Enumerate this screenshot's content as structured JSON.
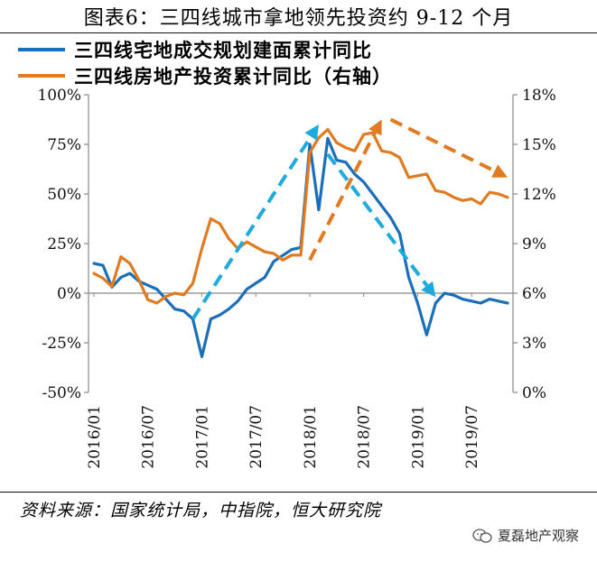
{
  "title": "图表6：三四线城市拿地领先投资约 9-12 个月",
  "legend": [
    {
      "label": "三四线宅地成交规划建面累计同比",
      "color": "#1a6fb8"
    },
    {
      "label": "三四线房地产投资累计同比（右轴）",
      "color": "#e07b22"
    }
  ],
  "source": "资料来源：国家统计局，中指院，恒大研究院",
  "watermark": "夏磊地产观察",
  "chart_data": {
    "type": "line",
    "left_axis": {
      "min": -50,
      "max": 100,
      "ticks": [
        "100%",
        "75%",
        "50%",
        "25%",
        "0%",
        "-25%",
        "-50%"
      ],
      "values": [
        100,
        75,
        50,
        25,
        0,
        -25,
        -50
      ]
    },
    "right_axis": {
      "min": 0,
      "max": 18,
      "ticks": [
        "18%",
        "15%",
        "12%",
        "9%",
        "6%",
        "3%",
        "0%"
      ],
      "values": [
        18,
        15,
        12,
        9,
        6,
        3,
        0
      ]
    },
    "x_ticks": [
      "2016/01",
      "2016/07",
      "2017/01",
      "2017/07",
      "2018/01",
      "2018/07",
      "2019/01",
      "2019/07"
    ],
    "series": [
      {
        "name": "三四线宅地成交规划建面累计同比",
        "axis": "left",
        "color": "#1a6fb8",
        "points": [
          [
            0,
            15
          ],
          [
            1,
            14
          ],
          [
            2,
            3
          ],
          [
            3,
            8
          ],
          [
            4,
            10
          ],
          [
            5,
            6
          ],
          [
            6,
            4
          ],
          [
            7,
            2
          ],
          [
            8,
            -3
          ],
          [
            9,
            -8
          ],
          [
            10,
            -9
          ],
          [
            11,
            -13
          ],
          [
            12,
            -32
          ],
          [
            13,
            -13
          ],
          [
            14,
            -11
          ],
          [
            15,
            -8
          ],
          [
            16,
            -4
          ],
          [
            17,
            2
          ],
          [
            18,
            5
          ],
          [
            19,
            8
          ],
          [
            20,
            16
          ],
          [
            21,
            19
          ],
          [
            22,
            22
          ],
          [
            23,
            23
          ],
          [
            24,
            75
          ],
          [
            25,
            42
          ],
          [
            26,
            78
          ],
          [
            27,
            67
          ],
          [
            28,
            66
          ],
          [
            29,
            60
          ],
          [
            30,
            56
          ],
          [
            31,
            50
          ],
          [
            32,
            44
          ],
          [
            33,
            38
          ],
          [
            34,
            30
          ],
          [
            35,
            8
          ],
          [
            36,
            -5
          ],
          [
            37,
            -21
          ],
          [
            38,
            -5
          ],
          [
            39,
            0
          ],
          [
            40,
            -1
          ],
          [
            41,
            -3
          ],
          [
            42,
            -4
          ],
          [
            43,
            -5
          ],
          [
            44,
            -3
          ],
          [
            45,
            -4
          ],
          [
            46,
            -5
          ]
        ]
      },
      {
        "name": "三四线房地产投资累计同比（右轴）",
        "axis": "right",
        "color": "#e07b22",
        "points": [
          [
            0,
            7.2
          ],
          [
            1,
            6.9
          ],
          [
            2,
            6.4
          ],
          [
            3,
            8.2
          ],
          [
            4,
            7.8
          ],
          [
            5,
            6.8
          ],
          [
            6,
            5.6
          ],
          [
            7,
            5.4
          ],
          [
            8,
            5.8
          ],
          [
            9,
            6.0
          ],
          [
            10,
            5.9
          ],
          [
            11,
            6.6
          ],
          [
            12,
            8.7
          ],
          [
            13,
            10.5
          ],
          [
            14,
            10.2
          ],
          [
            15,
            9.3
          ],
          [
            16,
            8.7
          ],
          [
            17,
            9.1
          ],
          [
            18,
            8.8
          ],
          [
            19,
            8.5
          ],
          [
            20,
            8.4
          ],
          [
            21,
            8.0
          ],
          [
            22,
            8.3
          ],
          [
            23,
            8.3
          ],
          [
            24,
            14.5
          ],
          [
            25,
            15.4
          ],
          [
            26,
            15.9
          ],
          [
            27,
            15.1
          ],
          [
            28,
            14.8
          ],
          [
            29,
            14.6
          ],
          [
            30,
            15.6
          ],
          [
            31,
            15.7
          ],
          [
            32,
            14.6
          ],
          [
            33,
            14.5
          ],
          [
            34,
            14.2
          ],
          [
            35,
            13.0
          ],
          [
            36,
            13.1
          ],
          [
            37,
            13.2
          ],
          [
            38,
            12.2
          ],
          [
            39,
            12.1
          ],
          [
            40,
            11.8
          ],
          [
            41,
            11.6
          ],
          [
            42,
            11.7
          ],
          [
            43,
            11.4
          ],
          [
            44,
            12.1
          ],
          [
            45,
            12.0
          ],
          [
            46,
            11.8
          ]
        ]
      }
    ],
    "annotations": [
      {
        "kind": "dashed-arrow",
        "color": "#1eaadc",
        "axis": "left",
        "from": [
          11,
          -13
        ],
        "to": [
          25,
          85
        ]
      },
      {
        "kind": "dashed-arrow",
        "color": "#1eaadc",
        "axis": "left",
        "from": [
          26,
          70
        ],
        "to": [
          38,
          -2
        ]
      },
      {
        "kind": "dashed-arrow",
        "color": "#e07b22",
        "axis": "right",
        "from": [
          24,
          8.0
        ],
        "to": [
          32,
          16.5
        ]
      },
      {
        "kind": "dashed-arrow",
        "color": "#e07b22",
        "axis": "right",
        "from": [
          33,
          16.5
        ],
        "to": [
          46,
          13.0
        ]
      }
    ]
  }
}
